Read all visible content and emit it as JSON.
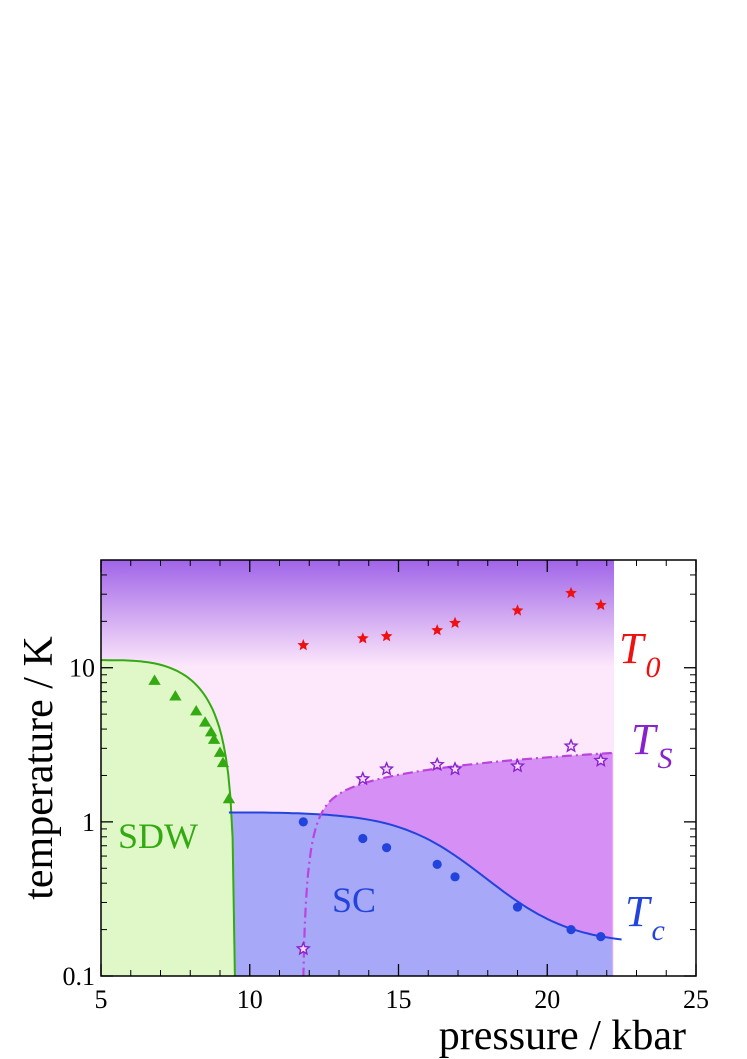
{
  "chart_data": {
    "type": "scatter",
    "xlabel": "pressure / kbar",
    "ylabel": "temperature / K",
    "x_scale": "linear",
    "y_scale": "log",
    "xlim": [
      5,
      25
    ],
    "ylim": [
      0.1,
      50
    ],
    "x_ticks": [
      5,
      10,
      15,
      20,
      25
    ],
    "x_tick_labels": [
      "5",
      "10",
      "15",
      "20",
      "25"
    ],
    "y_ticks": [
      0.1,
      1,
      10
    ],
    "y_tick_labels": [
      "0.1",
      "1",
      "10"
    ],
    "grid": false,
    "regions": [
      {
        "label": "SDW",
        "color": "#e0f8c8"
      },
      {
        "label": "SC",
        "color": "#a8a8f8"
      }
    ],
    "series": [
      {
        "name": "T_0",
        "label_main": "T",
        "label_sub": "0",
        "color": "#ee1111",
        "marker": "star-filled",
        "x": [
          11.8,
          13.8,
          14.6,
          16.3,
          16.9,
          19.0,
          20.8,
          21.8
        ],
        "y": [
          14.0,
          15.5,
          16.0,
          17.5,
          19.5,
          23.5,
          30.5,
          25.5
        ]
      },
      {
        "name": "T_S",
        "label_main": "T",
        "label_sub": "S",
        "color": "#8822cc",
        "marker": "star-open",
        "x": [
          11.8,
          13.8,
          14.6,
          16.3,
          16.9,
          19.0,
          20.8,
          21.8
        ],
        "y": [
          0.15,
          1.9,
          2.2,
          2.35,
          2.2,
          2.3,
          3.1,
          2.5
        ]
      },
      {
        "name": "T_c",
        "label_main": "T",
        "label_sub": "c",
        "color": "#2244dd",
        "marker": "circle",
        "x": [
          11.8,
          13.8,
          14.6,
          16.3,
          16.9,
          19.0,
          20.8,
          21.8
        ],
        "y": [
          1.0,
          0.78,
          0.68,
          0.53,
          0.44,
          0.28,
          0.2,
          0.18
        ]
      },
      {
        "name": "SDW",
        "color": "#33aa11",
        "marker": "triangle",
        "x": [
          6.8,
          7.5,
          8.2,
          8.5,
          8.7,
          8.8,
          9.0,
          9.1,
          9.3
        ],
        "y": [
          8.2,
          6.5,
          5.2,
          4.4,
          3.8,
          3.4,
          2.8,
          2.4,
          1.4
        ]
      }
    ]
  }
}
